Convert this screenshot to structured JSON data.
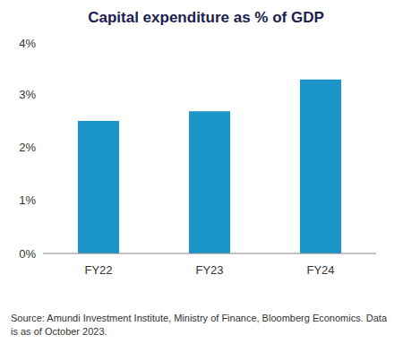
{
  "chart_data": {
    "type": "bar",
    "title": "Capital expenditure as % of GDP",
    "categories": [
      "FY22",
      "FY23",
      "FY24"
    ],
    "values": [
      2.5,
      2.68,
      3.28
    ],
    "color": "#1b95c9",
    "ylim": [
      0,
      4
    ],
    "yticks": [
      {
        "value": 0,
        "label": "0%"
      },
      {
        "value": 1,
        "label": "1%"
      },
      {
        "value": 2,
        "label": "2%"
      },
      {
        "value": 3,
        "label": "3%"
      },
      {
        "value": 4,
        "label": "4%"
      }
    ],
    "grid": false,
    "source": "Source: Amundi Investment Institute, Ministry of Finance, Bloomberg Economics. Data is as of October 2023."
  }
}
